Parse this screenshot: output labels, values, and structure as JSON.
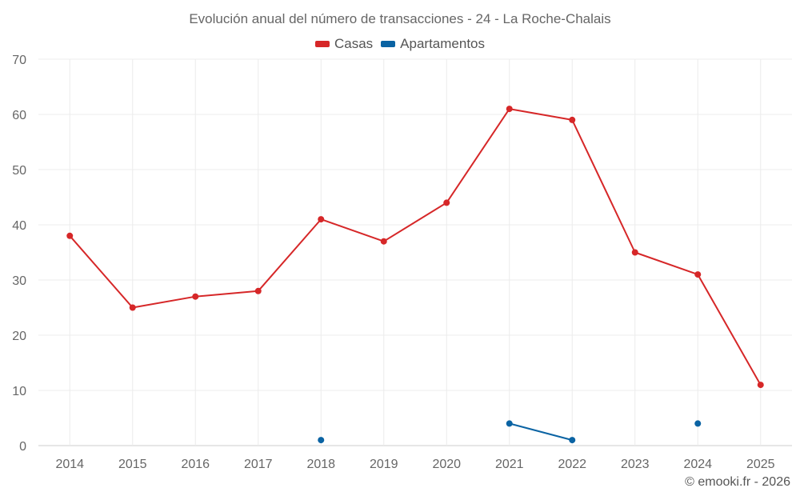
{
  "chart_data": {
    "type": "line",
    "title": "Evolución anual del número de transacciones - 24 - La Roche-Chalais",
    "xlabel": "",
    "ylabel": "",
    "categories": [
      "2014",
      "2015",
      "2016",
      "2017",
      "2018",
      "2019",
      "2020",
      "2021",
      "2022",
      "2023",
      "2024",
      "2025"
    ],
    "ylim": [
      0,
      70
    ],
    "yticks": [
      0,
      10,
      20,
      30,
      40,
      50,
      60,
      70
    ],
    "grid": true,
    "legend_position": "top-center",
    "series": [
      {
        "name": "Casas",
        "color": "#d62728",
        "values": [
          38,
          25,
          27,
          28,
          41,
          37,
          44,
          61,
          59,
          35,
          31,
          11
        ]
      },
      {
        "name": "Apartamentos",
        "color": "#0a63a3",
        "values": [
          null,
          null,
          null,
          null,
          1,
          null,
          null,
          4,
          1,
          null,
          4,
          null
        ]
      }
    ]
  },
  "credit": "© emooki.fr - 2026"
}
